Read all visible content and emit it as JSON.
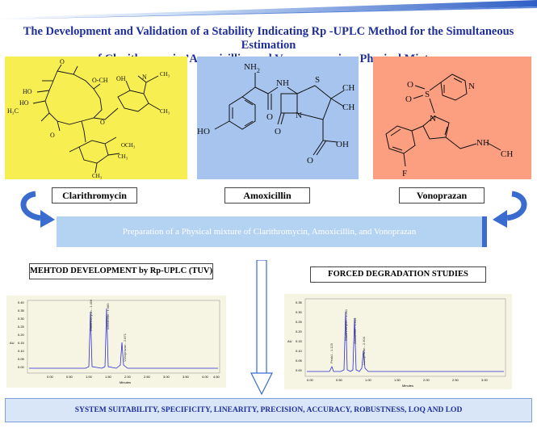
{
  "title": {
    "line1": "The Development and Validation of a Stability Indicating Rp -UPLC Method for the Simultaneous Estimation",
    "line2": "of Clarithromycin,’Amoxicillin, and Vonoprazan in a Physical Mixture"
  },
  "compounds": {
    "clarithromycin": "Clarithromycin",
    "amoxicillin": "Amoxicillin",
    "vonoprazan": "Vonoprazan"
  },
  "preparation": "Preparation of a Physical mixture of Clarithromycin, Amoxicillin, and Vonoprazan",
  "method_development": "MEHTOD DEVELOPMENT by Rp-UPLC (TUV)",
  "forced_degradation": "FORCED DEGRADATION STUDIES",
  "validation": "SYSTEM SUITABILITY, SPECIFICITY, LINEARITY, PRECISION, ACCURACY, ROBUSTNESS, LOQ AND LOD",
  "structure_labels": {
    "amox_nh2": "NH",
    "amox_nh2_sub": "2",
    "amox_nh": "NH",
    "amox_s": "S",
    "amox_ch3a": "CH",
    "amox_ch3b": "CH",
    "amox_n": "N",
    "amox_o1": "O",
    "amox_o2": "O",
    "amox_oh": "OH",
    "amox_ho": "HO",
    "vono_n1": "N",
    "vono_n2": "N",
    "vono_s": "S",
    "vono_o1": "O",
    "vono_o2": "O",
    "vono_f": "F",
    "vono_nh": "NH",
    "vono_ch3": "CH",
    "clari_o": "O",
    "clari_och3": "O-CH",
    "clari_ho1": "HO",
    "clari_ho2": "HO",
    "clari_h3c": "H₃C",
    "clari_oh": "OH",
    "clari_n": "N"
  },
  "chromatogram_1": {
    "peak_labels": [
      "Clarithromycin - 1.456",
      "Amoxicillin - 1.989",
      "Vonoprazan - 2.871"
    ],
    "y_ticks": [
      "0.40",
      "0.35",
      "0.30",
      "0.25",
      "0.20",
      "0.15",
      "0.10",
      "0.05",
      "0.00"
    ],
    "x_ticks": [
      "0.00",
      "0.50",
      "1.00",
      "1.50",
      "2.00",
      "2.50",
      "3.00",
      "3.50",
      "4.00",
      "4.50"
    ],
    "xlabel": "Minutes",
    "ylabel": "AU"
  },
  "chromatogram_2": {
    "peak_labels": [
      "Peak1 - 1.123",
      "Clarithromycin - 1.501",
      "Amoxicillin - 1.849",
      "Vonoprazan - 2.304"
    ],
    "y_ticks": [
      "0.35",
      "0.30",
      "0.25",
      "0.20",
      "0.15",
      "0.10",
      "0.05",
      "0.00"
    ],
    "x_ticks": [
      "0.00",
      "0.50",
      "1.00",
      "1.50",
      "2.00",
      "2.50",
      "3.00"
    ],
    "xlabel": "Minutes",
    "ylabel": "AU"
  },
  "colors": {
    "title": "#1f2f9a",
    "yellow_panel": "#f7ee52",
    "blue_panel": "#a6c4ee",
    "salmon_panel": "#fc9f80",
    "arrow_blue": "#3a6cd0"
  }
}
